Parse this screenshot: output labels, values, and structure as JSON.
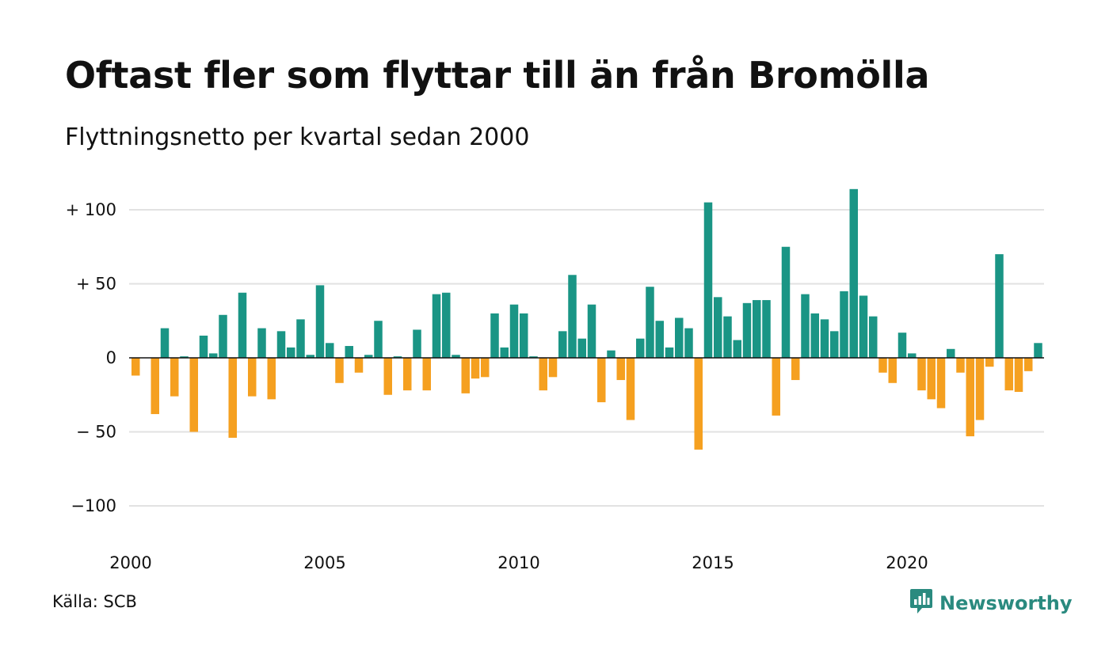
{
  "title": "Oftast fler som flyttar till än från Bromölla",
  "subtitle": "Flyttningsnetto per kvartal sedan 2000",
  "source": "Källa: SCB",
  "brand": {
    "name": "Newsworthy",
    "icon": "newsworthy-logo-icon"
  },
  "colors": {
    "positive": "#1a9585",
    "negative": "#f5a020",
    "grid": "#e2e2e2",
    "zero_line": "#111111",
    "brand": "#2a8a7f"
  },
  "chart_data": {
    "type": "bar",
    "title": "Oftast fler som flyttar till än från Bromölla",
    "subtitle": "Flyttningsnetto per kvartal sedan 2000",
    "xlabel": "",
    "ylabel": "",
    "ylim": [
      -120,
      120
    ],
    "grid": true,
    "y_ticks": [
      {
        "value": 100,
        "label": "+ 100"
      },
      {
        "value": 50,
        "label": "+  50"
      },
      {
        "value": 0,
        "label": "0"
      },
      {
        "value": -50,
        "label": "− 50"
      },
      {
        "value": -100,
        "label": "−100"
      }
    ],
    "x_ticks": [
      "2000",
      "2005",
      "2010",
      "2015",
      "2020"
    ],
    "start_year": 2000,
    "values": [
      -12,
      0,
      -38,
      20,
      -26,
      1,
      -50,
      15,
      3,
      29,
      -54,
      44,
      -26,
      20,
      -28,
      18,
      7,
      26,
      2,
      49,
      10,
      -17,
      8,
      -10,
      2,
      25,
      -25,
      1,
      -22,
      19,
      -22,
      43,
      44,
      2,
      -24,
      -14,
      -13,
      30,
      7,
      36,
      30,
      1,
      -22,
      -13,
      18,
      56,
      13,
      36,
      -30,
      5,
      -15,
      -42,
      13,
      48,
      25,
      7,
      27,
      20,
      -62,
      105,
      41,
      28,
      12,
      37,
      39,
      39,
      -39,
      75,
      -15,
      43,
      30,
      26,
      18,
      45,
      114,
      42,
      28,
      -10,
      -17,
      17,
      3,
      -22,
      -28,
      -34,
      6,
      -10,
      -53,
      -42,
      -6,
      70,
      -22,
      -23,
      -9,
      10
    ]
  }
}
